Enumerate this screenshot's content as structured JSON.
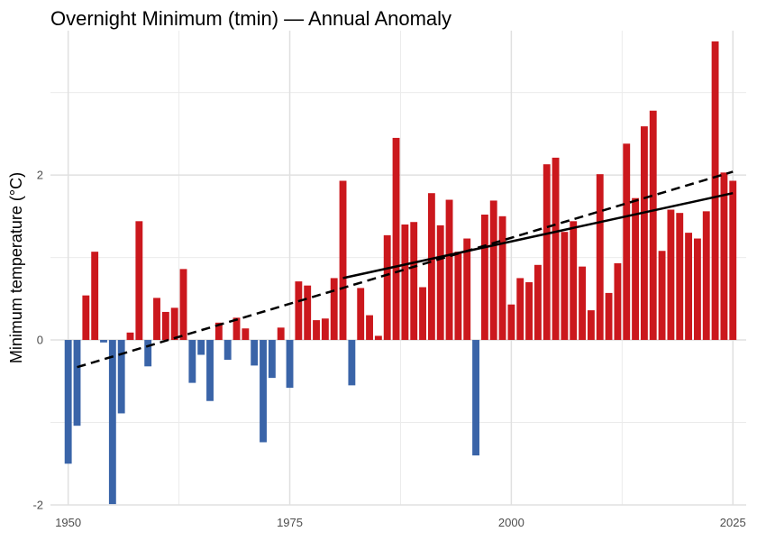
{
  "chart_data": {
    "type": "bar",
    "title": "Overnight Minimum (tmin) — Annual Anomaly",
    "xlabel": "",
    "ylabel": "Minimum temperature (°C)",
    "xlim": [
      1948,
      2026.5
    ],
    "ylim": [
      -2.0,
      3.75
    ],
    "x_ticks": [
      1950,
      1975,
      2000,
      2025
    ],
    "y_ticks": [
      -2,
      0,
      2
    ],
    "y_tick_labels": [
      "-2",
      "0",
      "2"
    ],
    "grid": true,
    "positive_color": "#cb181d",
    "negative_color": "#3a64a8",
    "x": [
      1950,
      1951,
      1952,
      1953,
      1954,
      1955,
      1956,
      1957,
      1958,
      1959,
      1960,
      1961,
      1962,
      1963,
      1964,
      1965,
      1966,
      1967,
      1968,
      1969,
      1970,
      1971,
      1972,
      1973,
      1974,
      1975,
      1976,
      1977,
      1978,
      1979,
      1980,
      1981,
      1982,
      1983,
      1984,
      1985,
      1986,
      1987,
      1988,
      1989,
      1990,
      1991,
      1992,
      1993,
      1994,
      1995,
      1996,
      1997,
      1998,
      1999,
      2000,
      2001,
      2002,
      2003,
      2004,
      2005,
      2006,
      2007,
      2008,
      2009,
      2010,
      2011,
      2012,
      2013,
      2014,
      2015,
      2016,
      2017,
      2018,
      2019,
      2020,
      2021,
      2022,
      2023,
      2024,
      2025
    ],
    "values": [
      -1.5,
      -1.04,
      0.54,
      1.07,
      -0.03,
      -1.99,
      -0.89,
      0.09,
      1.44,
      -0.32,
      0.51,
      0.34,
      0.39,
      0.86,
      -0.52,
      -0.18,
      -0.74,
      0.21,
      -0.24,
      0.27,
      0.14,
      -0.31,
      -1.24,
      -0.46,
      0.15,
      -0.58,
      0.71,
      0.66,
      0.24,
      0.26,
      0.75,
      1.93,
      -0.55,
      0.63,
      0.3,
      0.05,
      1.27,
      2.45,
      1.4,
      1.43,
      0.64,
      1.78,
      1.39,
      1.7,
      1.07,
      1.23,
      -1.4,
      1.52,
      1.69,
      1.5,
      0.43,
      0.75,
      0.7,
      0.91,
      2.13,
      2.21,
      1.31,
      1.44,
      0.89,
      0.36,
      2.01,
      0.57,
      0.93,
      2.38,
      1.72,
      2.59,
      2.78,
      1.08,
      1.58,
      1.54,
      1.3,
      1.23,
      1.56,
      3.62,
      2.03,
      1.93
    ],
    "trend_lines": [
      {
        "style": "dashed",
        "x": [
          1951,
          2025
        ],
        "y": [
          -0.33,
          2.04
        ]
      },
      {
        "style": "solid",
        "x": [
          1981,
          2025
        ],
        "y": [
          0.75,
          1.78
        ]
      }
    ]
  }
}
